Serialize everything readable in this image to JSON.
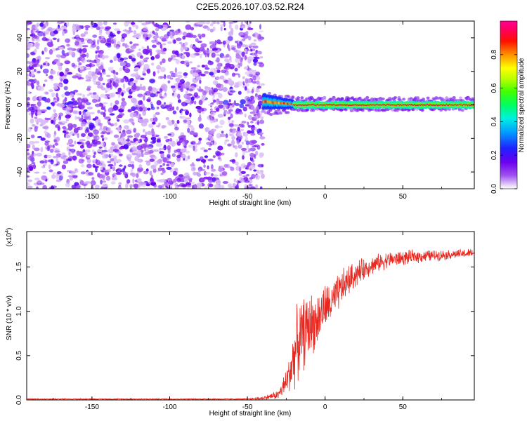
{
  "title": "C2E5.2026.107.03.52.R24",
  "chart_data": [
    {
      "type": "heatmap",
      "xlabel": "Height of straight line (km)",
      "ylabel": "Frequency (Hz)",
      "xlim": [
        -192,
        96
      ],
      "ylim": [
        -50,
        50
      ],
      "xticks": [
        -150,
        -100,
        -50,
        0,
        50
      ],
      "yticks": [
        -40,
        -20,
        0,
        20,
        40
      ],
      "colorbar": {
        "label": "Normalized spectral amplitude",
        "range": [
          0,
          1
        ],
        "ticks": [
          "0.0",
          "0.2",
          "0.4",
          "0.6",
          "0.8"
        ],
        "colormap": "rainbow (white-violet-blue-cyan-green-yellow-red-magenta)"
      },
      "regions": [
        {
          "x": [
            -192,
            -40
          ],
          "pattern": "broadband noise across all frequencies",
          "amplitude": [
            0.0,
            0.2
          ]
        },
        {
          "x": [
            -40,
            -20
          ],
          "pattern": "band narrowing toward 0 Hz (about -3 to 7 Hz)",
          "amplitude": [
            0.3,
            0.9
          ]
        },
        {
          "x": [
            -20,
            96
          ],
          "pattern": "narrow band centered near 0 Hz",
          "amplitude": [
            0.5,
            1.0
          ]
        }
      ]
    },
    {
      "type": "line",
      "xlabel": "Height of straight line (km)",
      "ylabel": "SNR (10 * v/v)",
      "y_scale_note": "(x10",
      "y_scale_exp": "4",
      "xlim": [
        -192,
        96
      ],
      "ylim": [
        0,
        1.9
      ],
      "xticks": [
        -150,
        -100,
        -50,
        0,
        50
      ],
      "yticks": [
        "0.0",
        "0.5",
        "1.0",
        "1.5"
      ],
      "series": [
        {
          "color": "#e8271f",
          "envelope": {
            "x": [
              -192,
              -50,
              -40,
              -30,
              -25,
              -22,
              -20,
              -18,
              -15,
              -10,
              -5,
              0,
              5,
              10,
              15,
              20,
              25,
              30,
              40,
              50,
              60,
              70,
              80,
              90,
              96
            ],
            "y_mean": [
              0.01,
              0.01,
              0.02,
              0.06,
              0.2,
              0.35,
              0.5,
              0.62,
              0.72,
              0.85,
              0.9,
              1.05,
              1.1,
              1.25,
              1.35,
              1.42,
              1.48,
              1.52,
              1.58,
              1.6,
              1.62,
              1.63,
              1.64,
              1.65,
              1.66
            ],
            "y_spread": [
              0.005,
              0.006,
              0.02,
              0.05,
              0.15,
              0.25,
              0.35,
              0.4,
              0.4,
              0.35,
              0.3,
              0.25,
              0.22,
              0.2,
              0.17,
              0.14,
              0.12,
              0.1,
              0.09,
              0.08,
              0.07,
              0.06,
              0.05,
              0.05,
              0.05
            ]
          }
        }
      ]
    }
  ]
}
